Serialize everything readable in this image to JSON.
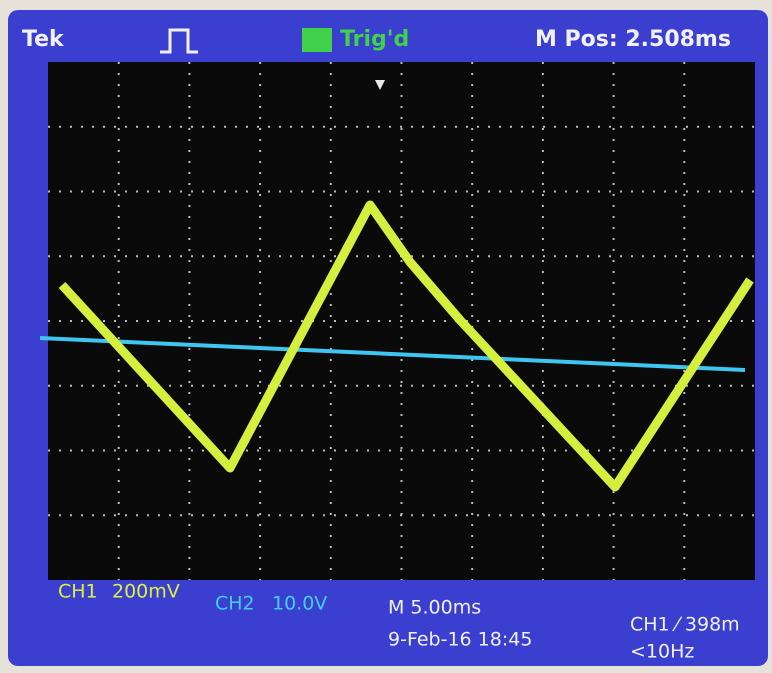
{
  "header": {
    "brand": "Tek",
    "trigger_status": "Trig'd",
    "position": "M Pos: 2.508ms"
  },
  "footer": {
    "ch1": "CH1",
    "ch1_scale": "200mV",
    "ch2": "CH2",
    "ch2_scale": "10.0V",
    "timebase": "M 5.00ms",
    "date": "9-Feb-16 18:45",
    "trigger": "CH1 ⁄ 398m",
    "frequency": "<10Hz"
  }
}
